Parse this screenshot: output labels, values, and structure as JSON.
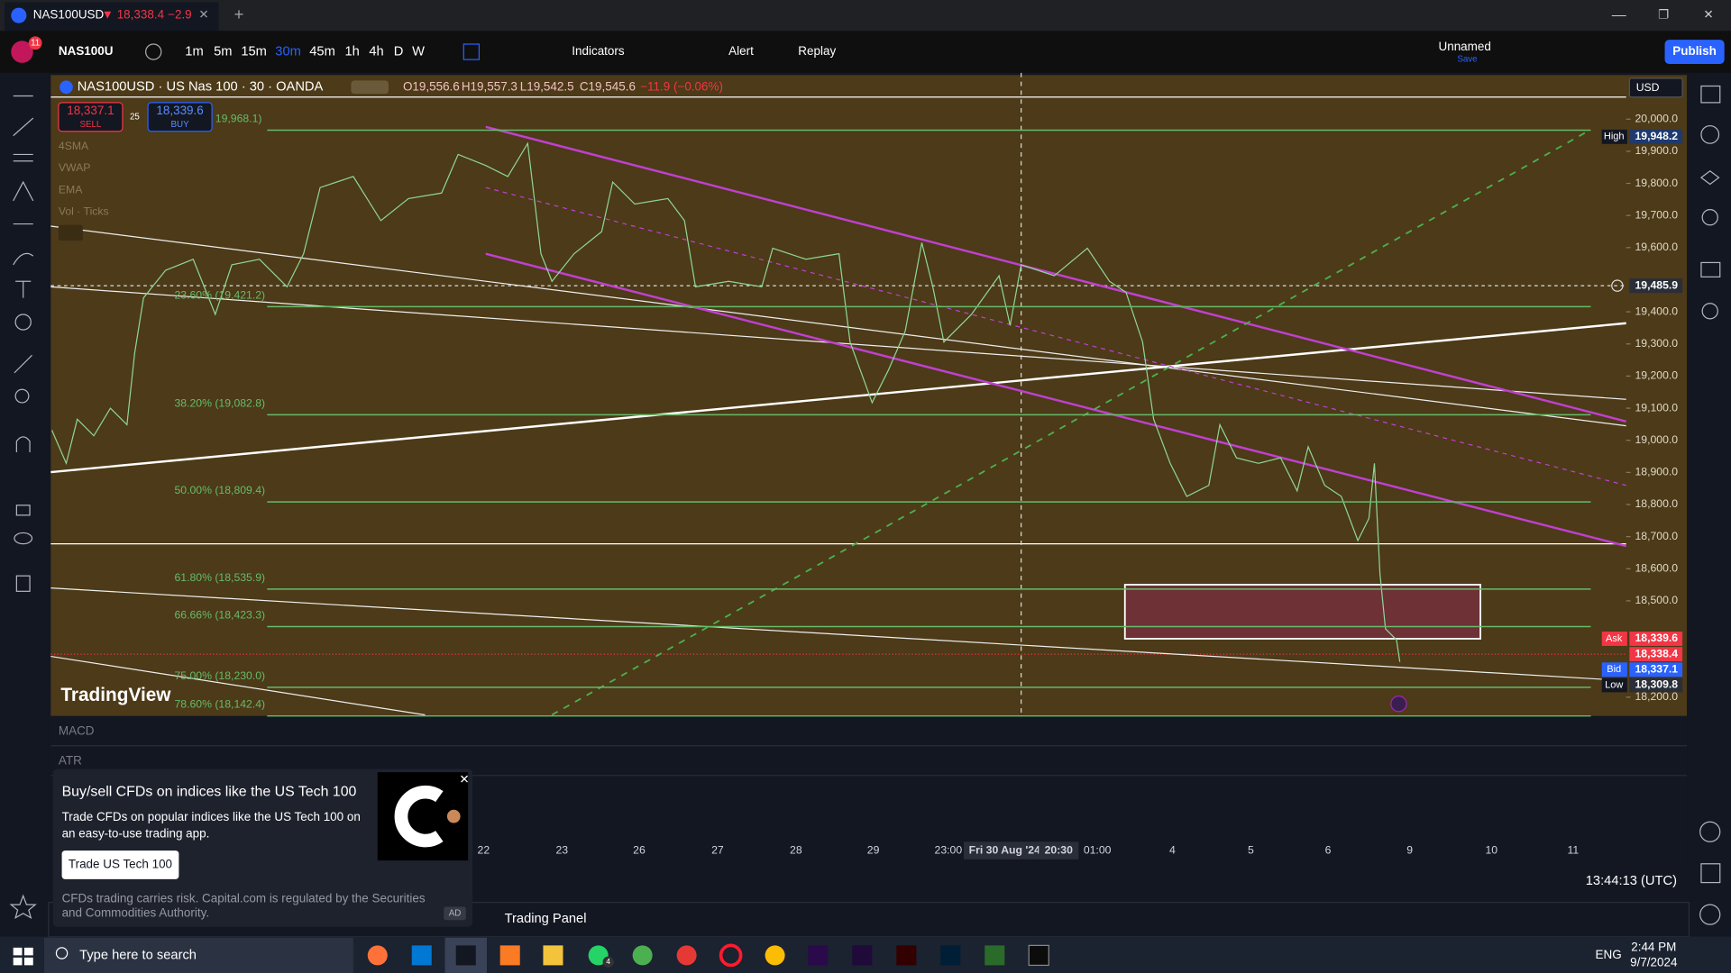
{
  "browser_tab": {
    "title": "NAS100USD",
    "price": "▼ 18,338.4",
    "change": "−2.9"
  },
  "toolbar": {
    "notifications": "11",
    "symbol": "NAS100U",
    "intervals": [
      "1m",
      "5m",
      "15m",
      "30m",
      "45m",
      "1h",
      "4h",
      "D",
      "W"
    ],
    "indicators": "Indicators",
    "alert": "Alert",
    "replay": "Replay",
    "layout_name": "Unnamed",
    "save": "Save",
    "publish": "Publish"
  },
  "legend": {
    "symbol": "NAS100USD · US Nas 100 · 30 · OANDA",
    "open": "O19,556.6",
    "high": "H19,557.3",
    "low": "L19,542.5",
    "close": "C19,545.6",
    "change": "−11.9 (−0.06%)",
    "sell_price": "18,337.1",
    "sell": "SELL",
    "spread": "25",
    "buy_price": "18,339.6",
    "buy": "BUY",
    "indicators": [
      "4SMA",
      "VWAP",
      "EMA",
      "Vol · Ticks"
    ]
  },
  "fib_levels": [
    "19,968.1)",
    "23.60% (19,421.2)",
    "38.20% (19,082.8)",
    "50.00% (18,809.4)",
    "61.80% (18,535.9)",
    "66.66% (18,423.3)",
    "75.00% (18,230.0)",
    "78.60% (18,142.4)"
  ],
  "price_axis": {
    "currency": "USD",
    "ticks": [
      {
        "value": 20000,
        "label": "20,000.0"
      },
      {
        "value": 19900,
        "label": "19,900.0"
      },
      {
        "value": 19800,
        "label": "19,800.0"
      },
      {
        "value": 19700,
        "label": "19,700.0"
      },
      {
        "value": 19600,
        "label": "19,600.0"
      },
      {
        "value": 19400,
        "label": "19,400.0"
      },
      {
        "value": 19300,
        "label": "19,300.0"
      },
      {
        "value": 19200,
        "label": "19,200.0"
      },
      {
        "value": 19100,
        "label": "19,100.0"
      },
      {
        "value": 19000,
        "label": "19,000.0"
      },
      {
        "value": 18900,
        "label": "18,900.0"
      },
      {
        "value": 18800,
        "label": "18,800.0"
      },
      {
        "value": 18700,
        "label": "18,700.0"
      },
      {
        "value": 18600,
        "label": "18,600.0"
      },
      {
        "value": 18500,
        "label": "18,500.0"
      },
      {
        "value": 18200,
        "label": "18,200.0"
      }
    ],
    "markers": [
      {
        "tag": "High",
        "label": "19,948.2"
      },
      {
        "label": "19,485.9"
      },
      {
        "tag": "Ask",
        "label": "18,339.6"
      },
      {
        "label": "18,338.4"
      },
      {
        "tag": "Bid",
        "label": "18,337.1"
      },
      {
        "tag": "Low",
        "label": "18,309.8"
      }
    ]
  },
  "time_axis": {
    "labels": [
      "22",
      "23",
      "26",
      "27",
      "28",
      "29",
      "23:00",
      "Fri 30 Aug '24",
      "20:30",
      "01:00",
      "4",
      "5",
      "6",
      "9",
      "10",
      "11"
    ],
    "clock": "13:44:13 (UTC)"
  },
  "panes": [
    "MACD",
    "ATR"
  ],
  "watermark": "TradingView",
  "ad": {
    "title": "Buy/sell CFDs on indices like the US Tech 100",
    "body": [
      "Trade CFDs on popular indices like the US Tech 100 on",
      "an easy-to-use trading app."
    ],
    "button": "Trade US Tech 100",
    "disclaimer": [
      "CFDs trading carries risk. Capital.com is regulated by the Securities",
      "and Commodities Authority."
    ],
    "badge": "AD"
  },
  "bottom_panel": {
    "tab": "Trading Panel"
  },
  "taskbar": {
    "search": "Type here to search",
    "whatsapp_badge": "4",
    "language": "ENG",
    "time": "2:44 PM",
    "date": "9/7/2024"
  }
}
